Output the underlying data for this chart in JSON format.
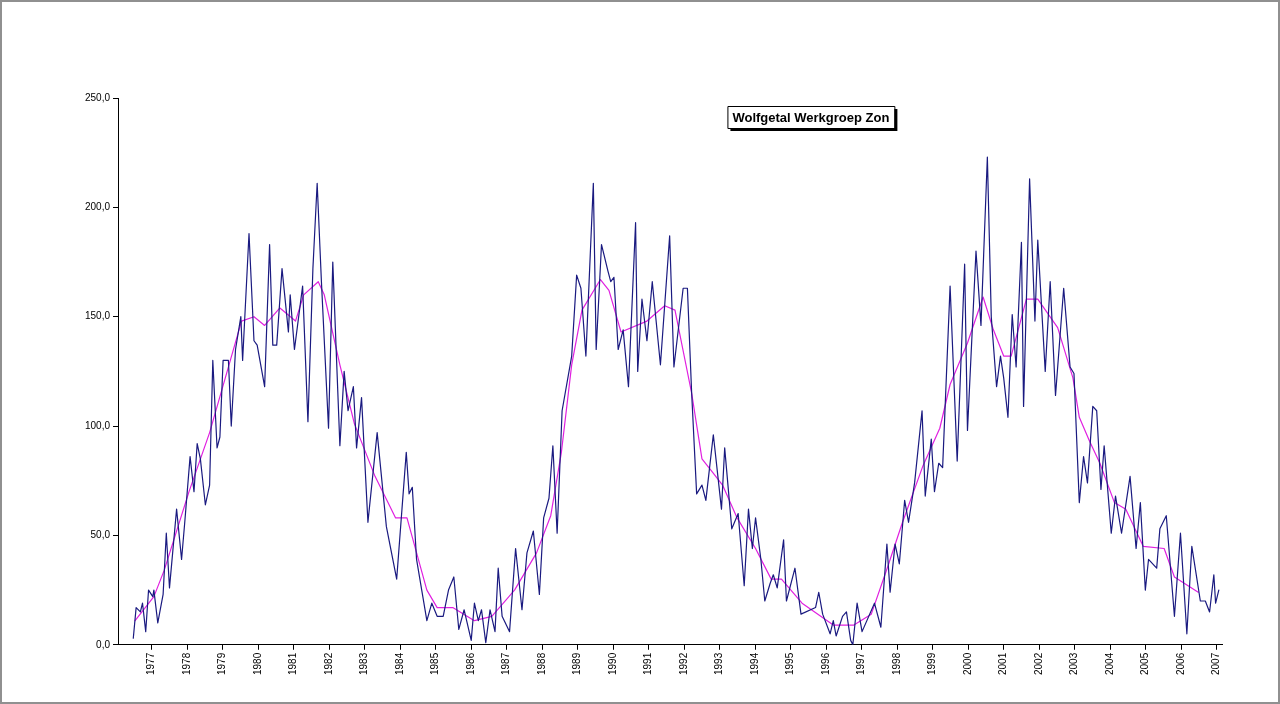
{
  "chart_data": {
    "type": "line",
    "title": "Wolfgetal Werkgroep Zon",
    "xlim": [
      1976.05,
      2007.15
    ],
    "xticks": [
      1977,
      1978,
      1979,
      1980,
      1981,
      1982,
      1983,
      1984,
      1985,
      1986,
      1987,
      1988,
      1989,
      1990,
      1991,
      1992,
      1993,
      1994,
      1995,
      1996,
      1997,
      1998,
      1999,
      2000,
      2001,
      2002,
      2003,
      2004,
      2005,
      2006,
      2007
    ],
    "ylim": [
      0,
      250
    ],
    "yticks": [
      {
        "value": 0,
        "label": "0,0"
      },
      {
        "value": 50,
        "label": "50,0"
      },
      {
        "value": 100,
        "label": "100,0"
      },
      {
        "value": 150,
        "label": "150,0"
      },
      {
        "value": 200,
        "label": "200,0"
      },
      {
        "value": 250,
        "label": "250,0"
      }
    ],
    "grid": false,
    "legend": false,
    "marker": "none",
    "line_style": "solid",
    "series": [
      {
        "color": "#1a1a80",
        "x": [
          1976.48,
          1976.56,
          1976.68,
          1976.74,
          1976.83,
          1976.91,
          1977.03,
          1977.06,
          1977.17,
          1977.32,
          1977.41,
          1977.5,
          1977.7,
          1977.84,
          1977.93,
          1978.08,
          1978.19,
          1978.28,
          1978.37,
          1978.51,
          1978.63,
          1978.72,
          1978.84,
          1978.92,
          1979.01,
          1979.16,
          1979.24,
          1979.36,
          1979.51,
          1979.56,
          1979.74,
          1979.88,
          1979.97,
          1980.18,
          1980.32,
          1980.41,
          1980.52,
          1980.67,
          1980.85,
          1980.9,
          1981.02,
          1981.25,
          1981.4,
          1981.54,
          1981.66,
          1981.78,
          1981.98,
          1982.1,
          1982.3,
          1982.42,
          1982.53,
          1982.68,
          1982.77,
          1982.91,
          1983.09,
          1983.35,
          1983.61,
          1983.9,
          1984.17,
          1984.25,
          1984.34,
          1984.46,
          1984.75,
          1984.89,
          1985.04,
          1985.21,
          1985.36,
          1985.51,
          1985.65,
          1985.8,
          1986.0,
          1986.09,
          1986.2,
          1986.29,
          1986.41,
          1986.53,
          1986.67,
          1986.76,
          1986.87,
          1987.08,
          1987.25,
          1987.43,
          1987.57,
          1987.75,
          1987.92,
          1988.04,
          1988.19,
          1988.3,
          1988.42,
          1988.56,
          1988.83,
          1988.97,
          1989.09,
          1989.23,
          1989.44,
          1989.52,
          1989.67,
          1989.85,
          1989.93,
          1990.02,
          1990.14,
          1990.28,
          1990.43,
          1990.63,
          1990.69,
          1990.81,
          1990.95,
          1991.1,
          1991.33,
          1991.59,
          1991.71,
          1991.97,
          1992.09,
          1992.21,
          1992.35,
          1992.5,
          1992.61,
          1992.82,
          1993.05,
          1993.14,
          1993.34,
          1993.52,
          1993.69,
          1993.81,
          1993.92,
          1994.01,
          1994.16,
          1994.27,
          1994.42,
          1994.51,
          1994.62,
          1994.8,
          1994.88,
          1995.12,
          1995.29,
          1995.7,
          1995.79,
          1995.9,
          1996.11,
          1996.2,
          1996.28,
          1996.46,
          1996.57,
          1996.69,
          1996.75,
          1996.87,
          1997.01,
          1997.36,
          1997.54,
          1997.71,
          1997.8,
          1997.94,
          1998.06,
          1998.21,
          1998.32,
          1998.49,
          1998.7,
          1998.79,
          1998.96,
          1999.05,
          1999.17,
          1999.28,
          1999.49,
          1999.69,
          1999.9,
          1999.98,
          2000.22,
          2000.36,
          2000.54,
          2000.65,
          2000.8,
          2000.91,
          2001.0,
          2001.12,
          2001.24,
          2001.35,
          2001.5,
          2001.56,
          2001.73,
          2001.88,
          2001.96,
          2002.17,
          2002.31,
          2002.46,
          2002.69,
          2002.87,
          2002.98,
          2003.13,
          2003.25,
          2003.36,
          2003.51,
          2003.62,
          2003.74,
          2003.83,
          2004.03,
          2004.15,
          2004.32,
          2004.56,
          2004.73,
          2004.85,
          2004.99,
          2005.08,
          2005.31,
          2005.4,
          2005.58,
          2005.81,
          2005.98,
          2006.16,
          2006.3,
          2006.54,
          2006.68,
          2006.8,
          2006.92,
          2006.97,
          2007.06
        ],
        "values": [
          3,
          17,
          15,
          19,
          6,
          25,
          22,
          25,
          10,
          23,
          51,
          26,
          62,
          39,
          56,
          86,
          70,
          92,
          85,
          64,
          73,
          130,
          90,
          95,
          130,
          130,
          100,
          135,
          150,
          130,
          188,
          139,
          137,
          118,
          183,
          137,
          137,
          172,
          143,
          160,
          135,
          164,
          102,
          172,
          211,
          166,
          99,
          175,
          91,
          125,
          107,
          118,
          90,
          113,
          56,
          97,
          54,
          30,
          88,
          69,
          72,
          39,
          11,
          19,
          13,
          13,
          25,
          31,
          7,
          16,
          2,
          19,
          11,
          16,
          1,
          16,
          6,
          35,
          13,
          6,
          44,
          16,
          42,
          52,
          23,
          58,
          67,
          91,
          51,
          107,
          132,
          169,
          163,
          132,
          211,
          135,
          183,
          171,
          166,
          168,
          135,
          144,
          118,
          193,
          125,
          158,
          139,
          166,
          128,
          187,
          127,
          163,
          163,
          115,
          69,
          73,
          66,
          96,
          62,
          90,
          53,
          60,
          27,
          62,
          44,
          58,
          39,
          20,
          28,
          32,
          26,
          48,
          20,
          35,
          14,
          17,
          24,
          14,
          5,
          11,
          4,
          13,
          15,
          2,
          0,
          19,
          6,
          19,
          8,
          46,
          24,
          46,
          37,
          66,
          56,
          74,
          107,
          68,
          94,
          70,
          83,
          81,
          164,
          84,
          174,
          98,
          180,
          146,
          223,
          150,
          118,
          132,
          122,
          104,
          151,
          127,
          184,
          109,
          213,
          148,
          185,
          125,
          166,
          114,
          163,
          127,
          124,
          65,
          86,
          74,
          109,
          107,
          71,
          91,
          51,
          68,
          51,
          77,
          44,
          65,
          25,
          39,
          35,
          53,
          59,
          13,
          51,
          5,
          45,
          20,
          20,
          15,
          32,
          19,
          25
        ]
      },
      {
        "color": "#e020e0",
        "x": [
          1976.53,
          1977.06,
          1977.35,
          1978.05,
          1978.63,
          1979.53,
          1979.88,
          1980.18,
          1980.61,
          1981.05,
          1981.28,
          1981.69,
          1981.86,
          1982.3,
          1982.71,
          1983.29,
          1983.87,
          1984.19,
          1984.75,
          1985.04,
          1985.48,
          1986.09,
          1986.58,
          1987.22,
          1987.84,
          1988.24,
          1988.54,
          1988.83,
          1989.12,
          1989.64,
          1989.88,
          1990.22,
          1990.95,
          1991.45,
          1991.74,
          1992.21,
          1992.5,
          1992.79,
          1993.08,
          1993.49,
          1994.01,
          1994.45,
          1994.74,
          1995.32,
          1996.2,
          1996.78,
          1997.27,
          1997.74,
          1998.15,
          1998.73,
          1999.2,
          1999.49,
          1999.98,
          2000.42,
          2000.71,
          2001.0,
          2001.21,
          2001.64,
          2001.96,
          2002.52,
          2002.95,
          2003.13,
          2003.42,
          2003.71,
          2004.12,
          2004.44,
          2004.93,
          2005.52,
          2005.81,
          2006.48
        ],
        "values": [
          11,
          22,
          34,
          70,
          97,
          148,
          150,
          146,
          154,
          148,
          160,
          166,
          160,
          128,
          101,
          77,
          58,
          58,
          25,
          17,
          17,
          11,
          13,
          25,
          42,
          59,
          88,
          128,
          153,
          167,
          162,
          143,
          148,
          155,
          153,
          115,
          85,
          79,
          73,
          58,
          44,
          30,
          30,
          19,
          9,
          9,
          14,
          36,
          56,
          82,
          99,
          119,
          138,
          159,
          144,
          132,
          132,
          158,
          158,
          145,
          122,
          104,
          93,
          83,
          65,
          62,
          45,
          44,
          31,
          24
        ]
      }
    ]
  }
}
